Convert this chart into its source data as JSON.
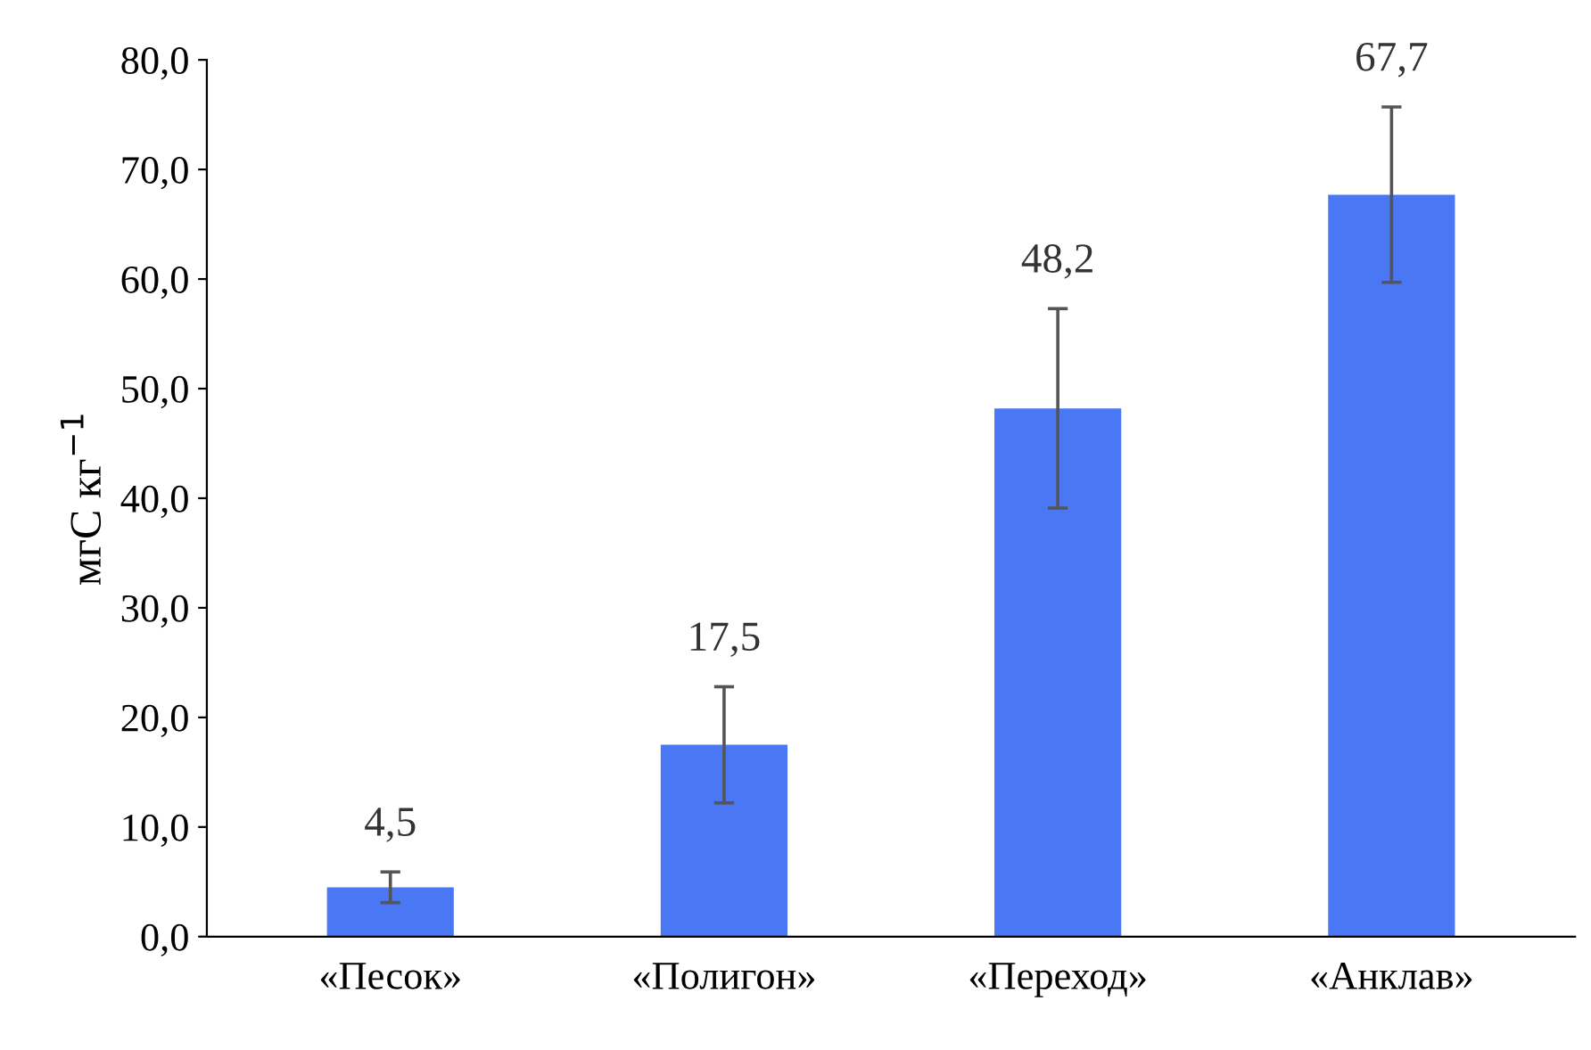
{
  "chart_data": {
    "type": "bar",
    "categories": [
      "«Песок»",
      "«Полигон»",
      "«Переход»",
      "«Анклав»"
    ],
    "values": [
      4.5,
      17.5,
      48.2,
      67.7
    ],
    "errors": [
      1.4,
      5.3,
      9.1,
      8.0
    ],
    "value_labels": [
      "4,5",
      "17,5",
      "48,2",
      "67,7"
    ],
    "color": "#4a78f5",
    "ylabel": "мгС кг$^{−1}$",
    "ylim": [
      0,
      80
    ],
    "yticks": [
      {
        "value": 0,
        "label": "0,0"
      },
      {
        "value": 10,
        "label": "10,0"
      },
      {
        "value": 20,
        "label": "20,0"
      },
      {
        "value": 30,
        "label": "30,0"
      },
      {
        "value": 40,
        "label": "40,0"
      },
      {
        "value": 50,
        "label": "50,0"
      },
      {
        "value": 60,
        "label": "60,0"
      },
      {
        "value": 70,
        "label": "70,0"
      },
      {
        "value": 80,
        "label": "80,0"
      }
    ],
    "grid": false,
    "legend": false
  }
}
